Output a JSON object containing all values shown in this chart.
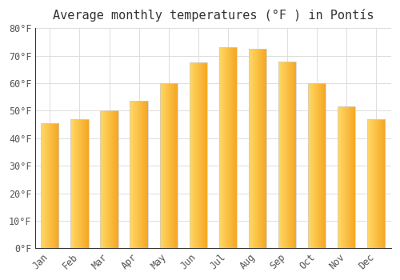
{
  "title": "Average monthly temperatures (°F ) in Pontís",
  "months": [
    "Jan",
    "Feb",
    "Mar",
    "Apr",
    "May",
    "Jun",
    "Jul",
    "Aug",
    "Sep",
    "Oct",
    "Nov",
    "Dec"
  ],
  "values": [
    45.5,
    47.0,
    50.0,
    53.5,
    60.0,
    67.5,
    73.0,
    72.5,
    68.0,
    60.0,
    51.5,
    47.0
  ],
  "bar_color_left": "#FFD966",
  "bar_color_right": "#F5A623",
  "ylim": [
    0,
    80
  ],
  "yticks": [
    0,
    10,
    20,
    30,
    40,
    50,
    60,
    70,
    80
  ],
  "background_color": "#ffffff",
  "plot_bg_color": "#ffffff",
  "grid_color": "#dddddd",
  "title_fontsize": 11,
  "tick_fontsize": 8.5,
  "bar_width": 0.6,
  "bar_edge_color": "#cccccc",
  "bar_edge_width": 0.5
}
